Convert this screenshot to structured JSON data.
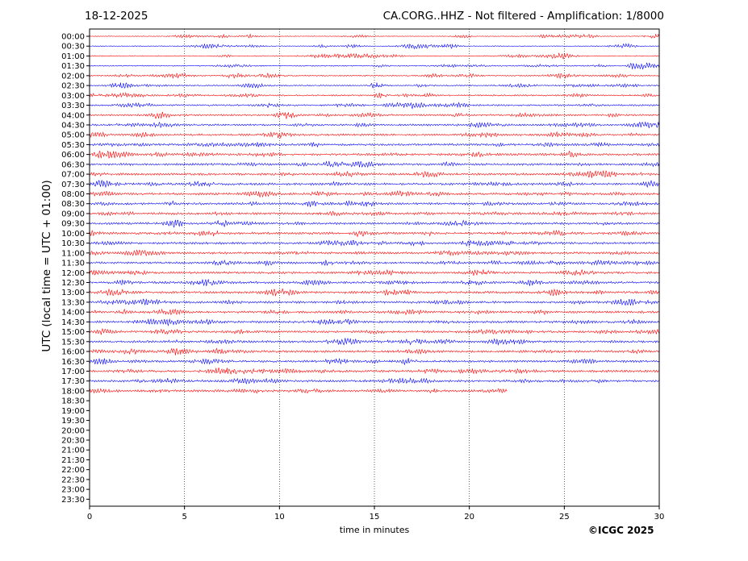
{
  "header": {
    "date": "18-12-2025",
    "title": "CA.CORG..HHZ - Not filtered - Amplification: 1/8000"
  },
  "footer": {
    "copyright": "©ICGC 2025"
  },
  "chart_data": {
    "type": "line",
    "title": "CA.CORG..HHZ - Not filtered - Amplification: 1/8000",
    "xlabel": "time in minutes",
    "ylabel": "UTC (local time = UTC + 01:00)",
    "xlim": [
      0,
      30
    ],
    "xticks": [
      0,
      5,
      10,
      15,
      20,
      25,
      30
    ],
    "vertical_grid": "dotted at each x tick",
    "rows": [
      "00:00",
      "00:30",
      "01:00",
      "01:30",
      "02:00",
      "02:30",
      "03:00",
      "03:30",
      "04:00",
      "04:30",
      "05:00",
      "05:30",
      "06:00",
      "06:30",
      "07:00",
      "07:30",
      "08:00",
      "08:30",
      "09:00",
      "09:30",
      "10:00",
      "10:30",
      "11:00",
      "11:30",
      "12:00",
      "12:30",
      "13:00",
      "13:30",
      "14:00",
      "14:30",
      "15:00",
      "15:30",
      "16:00",
      "16:30",
      "17:00",
      "17:30",
      "18:00",
      "18:30",
      "19:00",
      "19:30",
      "20:00",
      "20:30",
      "21:00",
      "21:30",
      "22:00",
      "22:30",
      "23:00",
      "23:30"
    ],
    "row_colors": [
      "#ff0000",
      "#0000ff"
    ],
    "recorded_rows": 37,
    "last_row_end_minutes": 22
  }
}
